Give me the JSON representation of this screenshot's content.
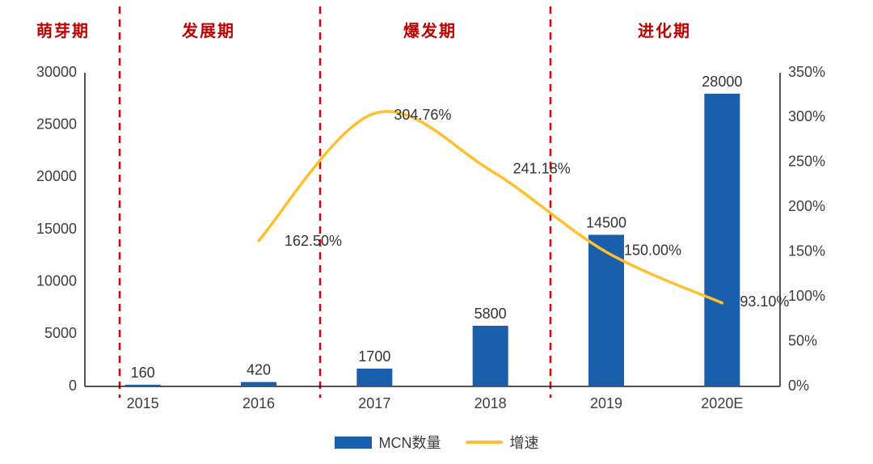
{
  "chart_data": {
    "type": "bar+line combo",
    "title": "",
    "categories": [
      "2015",
      "2016",
      "2017",
      "2018",
      "2019",
      "2020E"
    ],
    "series": [
      {
        "name": "MCN数量",
        "type": "bar",
        "axis": "left",
        "color": "#1A5FAC",
        "values": [
          160,
          420,
          1700,
          5800,
          14500,
          28000
        ],
        "labels": [
          "160",
          "420",
          "1700",
          "5800",
          "14500",
          "28000"
        ]
      },
      {
        "name": "增速",
        "type": "line",
        "axis": "right",
        "color": "#FFC02E",
        "values": [
          null,
          162.5,
          304.76,
          241.18,
          150.0,
          93.1
        ],
        "labels": [
          null,
          "162.50%",
          "304.76%",
          "241.18%",
          "150.00%",
          "93.10%"
        ]
      }
    ],
    "left_axis": {
      "min": 0,
      "max": 30000,
      "step": 5000,
      "tick_labels": [
        "0",
        "5000",
        "10000",
        "15000",
        "20000",
        "25000",
        "30000"
      ]
    },
    "right_axis": {
      "min": 0,
      "max": 350,
      "step": 50,
      "unit": "%",
      "tick_labels": [
        "0%",
        "50%",
        "100%",
        "150%",
        "200%",
        "250%",
        "300%",
        "350%"
      ]
    },
    "phases": [
      {
        "label": "萌芽期"
      },
      {
        "label": "发展期"
      },
      {
        "label": "爆发期"
      },
      {
        "label": "进化期"
      }
    ],
    "phase_label_color": "#C00000",
    "phase_divider_color": "#E00000",
    "legend": [
      {
        "label": "MCN数量",
        "color": "#1A5FAC",
        "marker": "rect"
      },
      {
        "label": "增速",
        "color": "#FFC02E",
        "marker": "line"
      }
    ],
    "layout_hints": {
      "grid": false,
      "legend_position": "bottom-center",
      "line_smooth": true
    }
  }
}
